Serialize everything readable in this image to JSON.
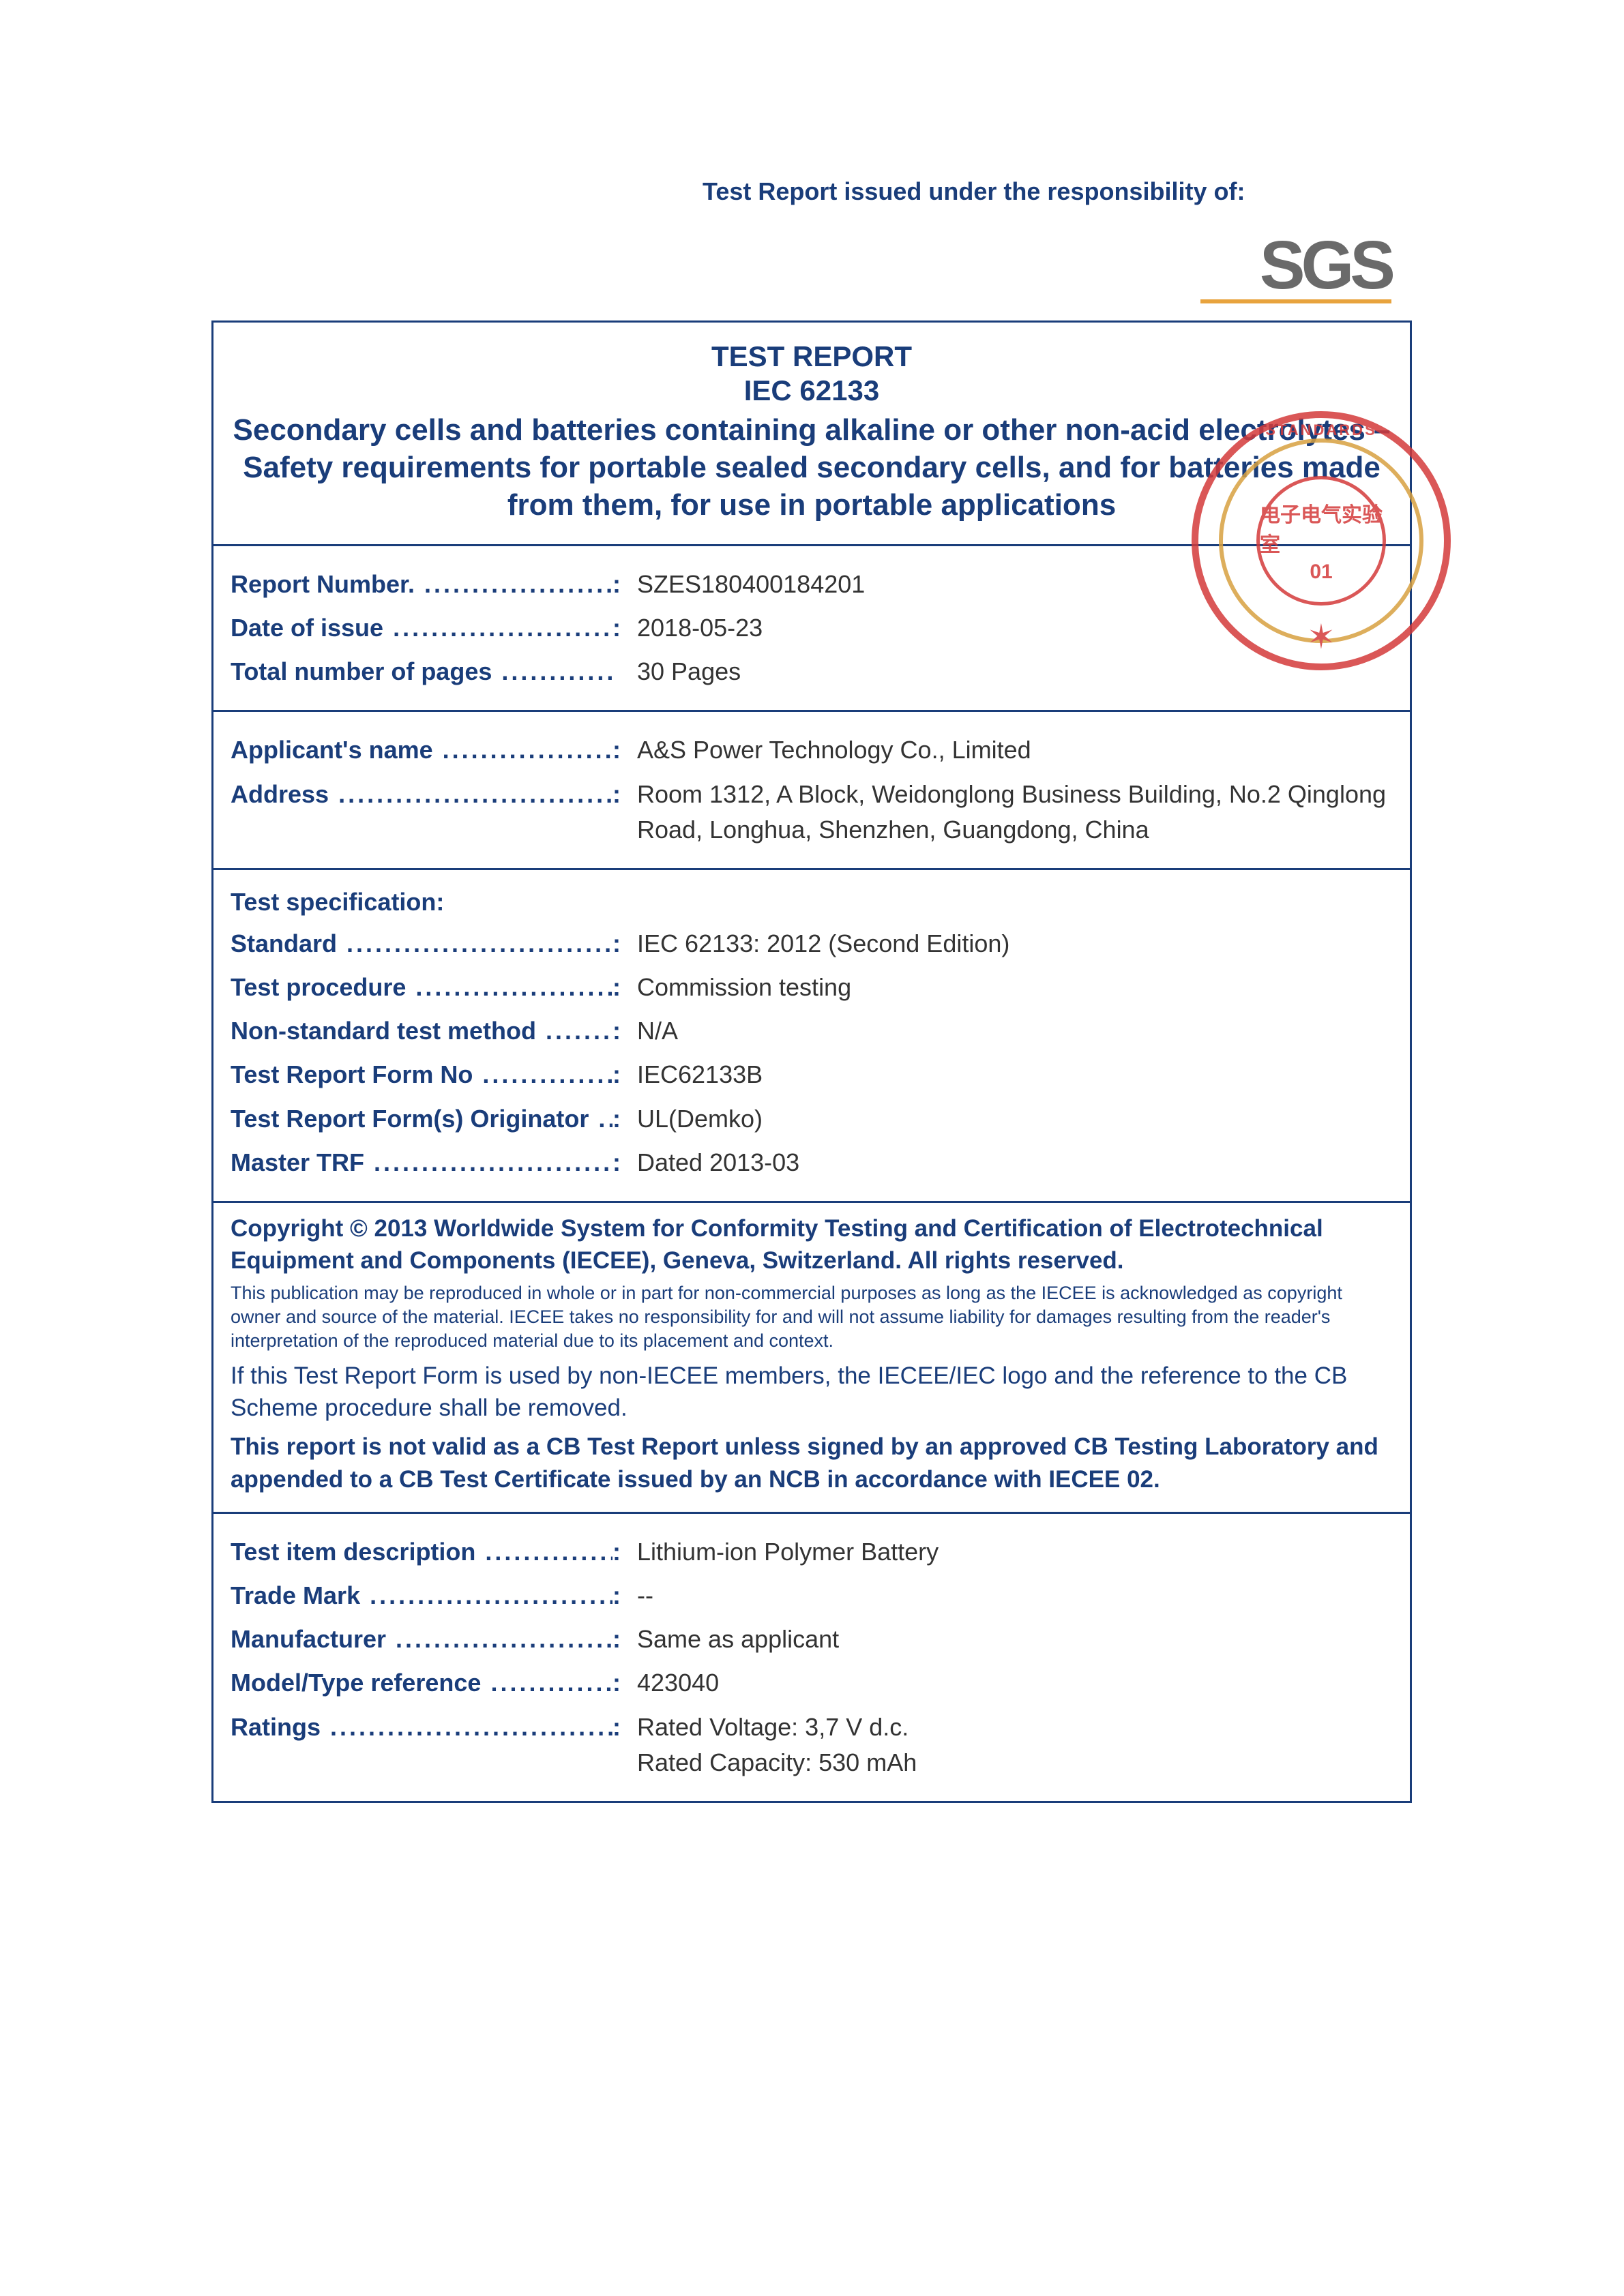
{
  "header": {
    "responsibility": "Test Report issued under the responsibility of:",
    "logo_text": "SGS"
  },
  "title": {
    "main": "TEST REPORT",
    "standard": "IEC 62133",
    "description": "Secondary cells and batteries containing alkaline or other non-acid electrolytes – Safety requirements for portable sealed secondary cells, and for batteries made from them, for use in portable applications"
  },
  "report_info": {
    "report_number_label": "Report Number.",
    "report_number": "SZES180400184201",
    "date_label": "Date of issue",
    "date": "2018-05-23",
    "pages_label": "Total number of pages",
    "pages": "30 Pages"
  },
  "applicant": {
    "name_label": "Applicant's name",
    "name": "A&S Power Technology Co., Limited",
    "address_label": "Address",
    "address": "Room 1312, A Block, Weidonglong Business Building, No.2 Qinglong Road, Longhua, Shenzhen, Guangdong, China"
  },
  "spec": {
    "header": "Test specification:",
    "standard_label": "Standard",
    "standard": "IEC 62133: 2012 (Second Edition)",
    "procedure_label": "Test procedure",
    "procedure": "Commission testing",
    "nonstd_label": "Non-standard test method",
    "nonstd": "N/A",
    "form_no_label": "Test Report Form No",
    "form_no": "IEC62133B",
    "originator_label": "Test Report Form(s) Originator",
    "originator": "UL(Demko)",
    "master_label": "Master TRF",
    "master": "Dated 2013-03"
  },
  "copyright": {
    "line1": "Copyright © 2013 Worldwide System for Conformity Testing and Certification of Electrotechnical Equipment and Components (IECEE), Geneva, Switzerland. All rights reserved.",
    "line2": "This publication may be reproduced in whole or in part for non-commercial purposes as long as the IECEE is acknowledged as copyright owner and source of the material. IECEE takes no responsibility for and will not assume liability for damages resulting from the reader's interpretation of the reproduced material due to its placement and context.",
    "line3": "If this Test Report Form is used by non-IECEE members, the IECEE/IEC logo and the reference to the CB Scheme procedure shall be removed.",
    "line4": "This report is not valid as a CB Test Report unless signed by an approved CB Testing Laboratory and appended to a CB Test Certificate issued by an NCB in accordance with IECEE 02."
  },
  "item": {
    "desc_label": "Test item description",
    "desc": "Lithium-ion Polymer Battery",
    "trade_label": "Trade Mark",
    "trade": "--",
    "mfr_label": "Manufacturer",
    "mfr": "Same as applicant",
    "model_label": "Model/Type reference",
    "model": "423040",
    "ratings_label": "Ratings",
    "ratings1": "Rated Voltage: 3,7 V d.c.",
    "ratings2": "Rated Capacity: 530 mAh"
  },
  "seal": {
    "arc_text": "STANDARDS",
    "inner_text": "电子电气实验室",
    "number": "01"
  },
  "colors": {
    "primary": "#1a3d7a",
    "accent": "#e8a33d",
    "seal_red": "#d43a3a",
    "text": "#333333",
    "background": "#ffffff"
  }
}
